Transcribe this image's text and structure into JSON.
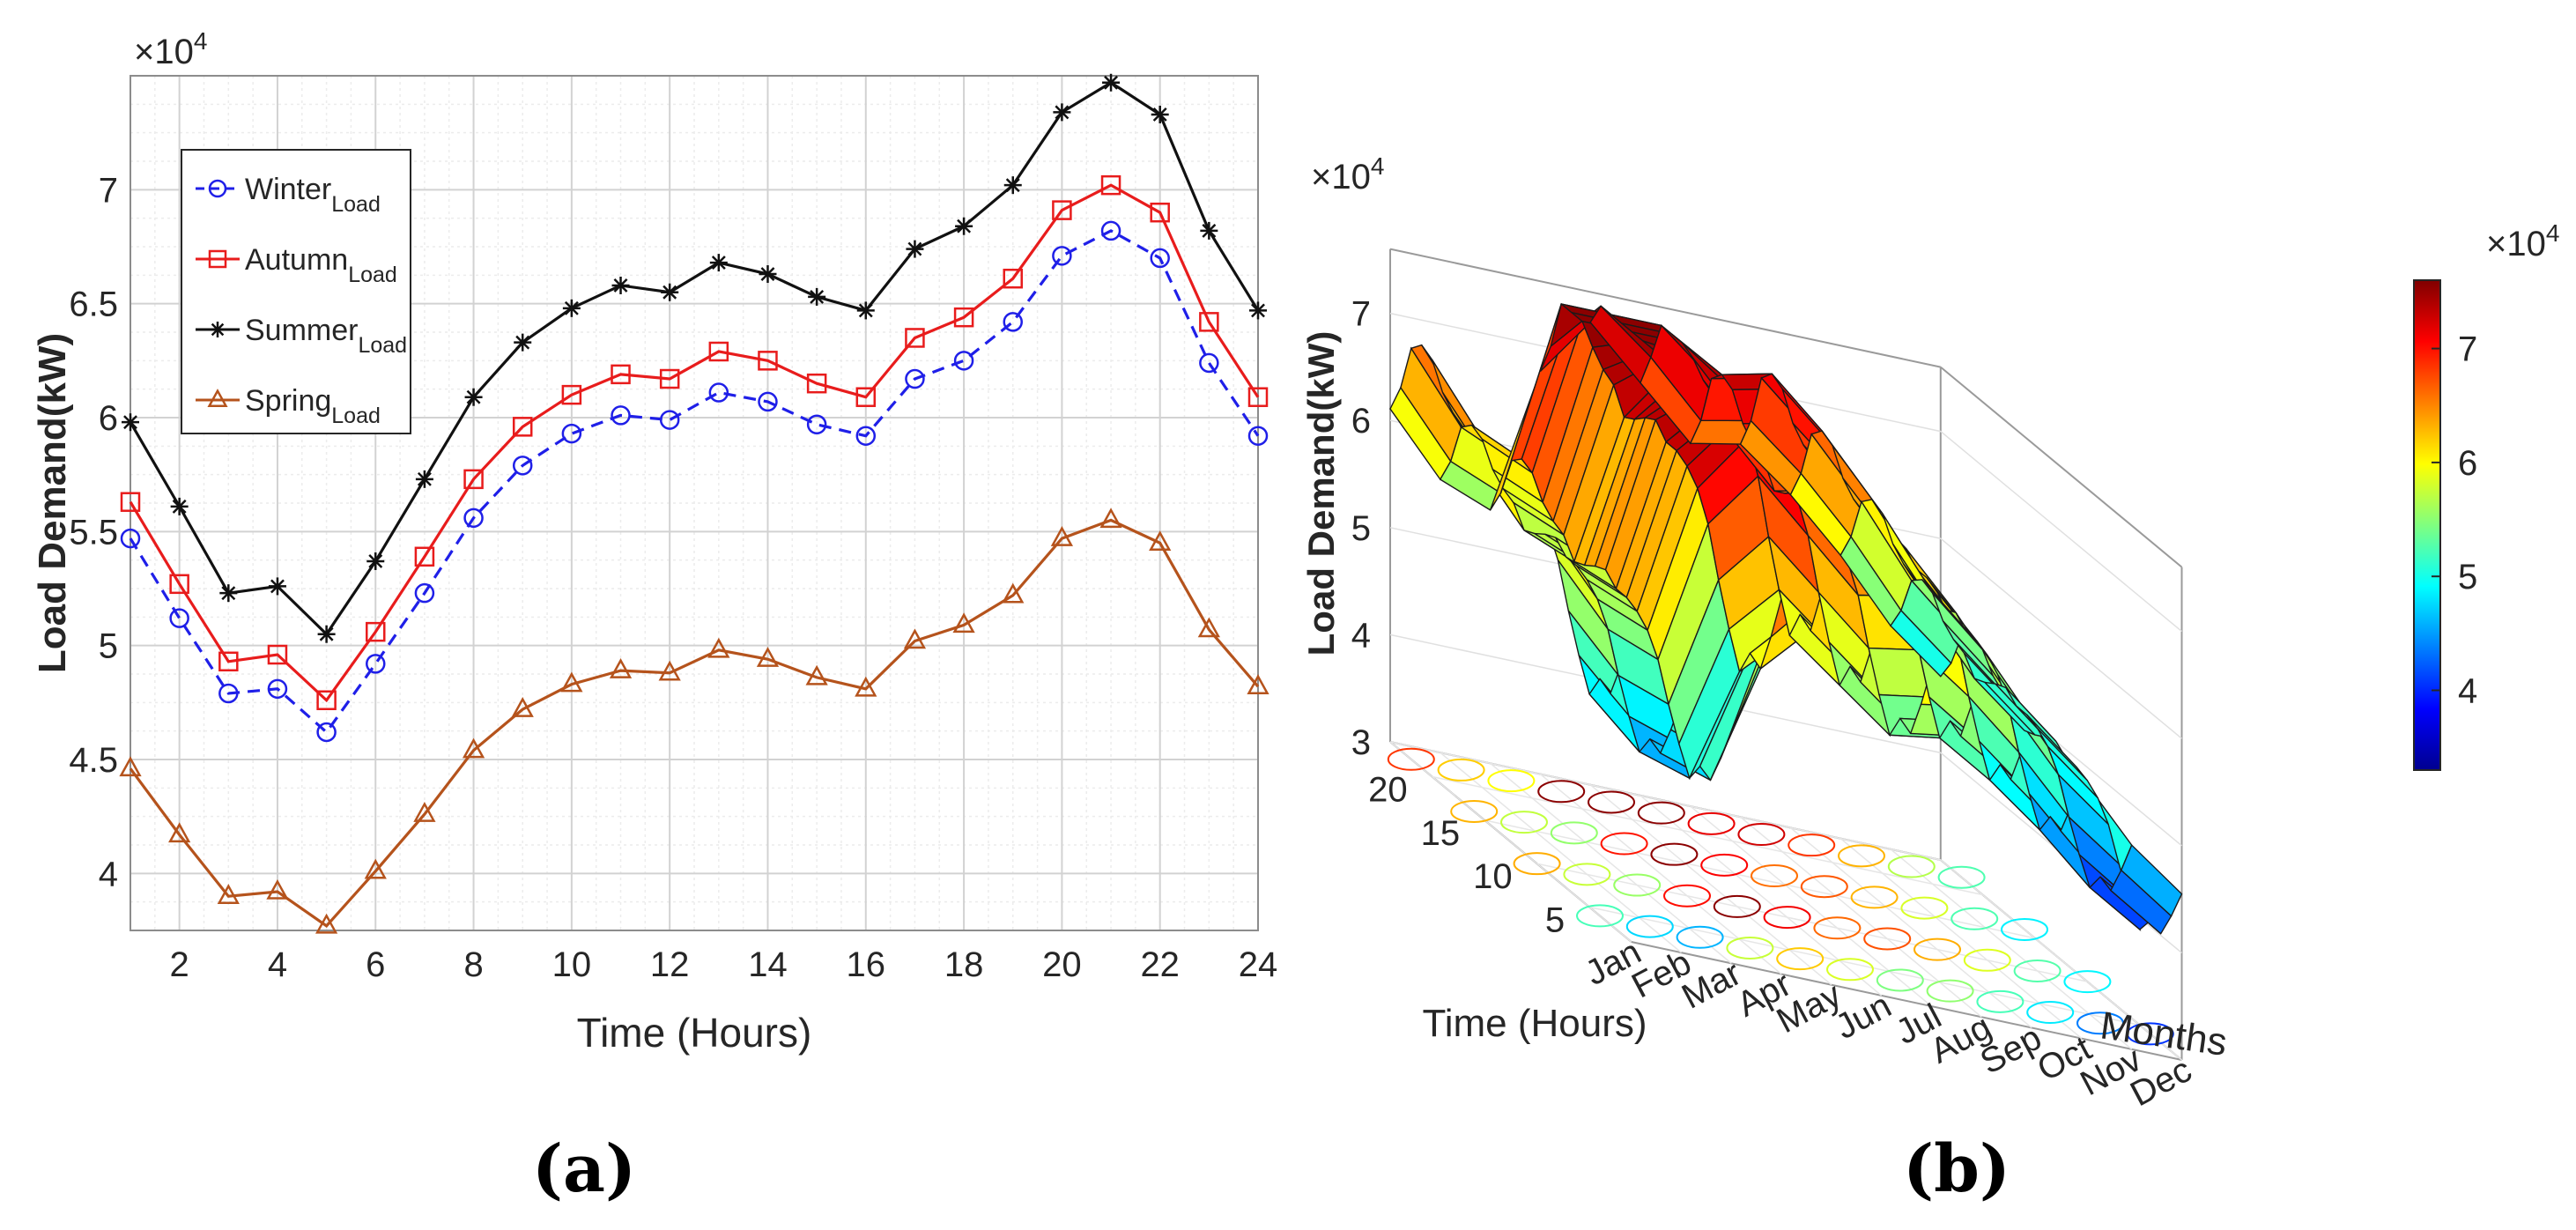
{
  "panel_labels": {
    "a": "(a)",
    "b": "(b)"
  },
  "chart_data": [
    {
      "type": "line",
      "panel": "(a)",
      "xlabel": "Time (Hours)",
      "ylabel": "Load Demand(kW)",
      "y_exponent": "×10",
      "y_exponent_power": "4",
      "xlim": [
        1,
        24
      ],
      "ylim": [
        3.75,
        7.5
      ],
      "xticks": [
        2,
        4,
        6,
        8,
        10,
        12,
        14,
        16,
        18,
        20,
        22,
        24
      ],
      "yticks": [
        4,
        4.5,
        5,
        5.5,
        6,
        6.5,
        7
      ],
      "ytick_labels": [
        "4",
        "4.5",
        "5",
        "5.5",
        "6",
        "6.5",
        "7"
      ],
      "grid": true,
      "legend_position": "top-left",
      "x": [
        1,
        2,
        3,
        4,
        5,
        6,
        7,
        8,
        9,
        10,
        11,
        12,
        13,
        14,
        15,
        16,
        17,
        18,
        19,
        20,
        21,
        22,
        23,
        24
      ],
      "series": [
        {
          "name": "Winter",
          "subscript": "Load",
          "color": "#1f1fe8",
          "marker": "circle",
          "dash": true,
          "values": [
            5.47,
            5.12,
            4.79,
            4.81,
            4.62,
            4.92,
            5.23,
            5.56,
            5.79,
            5.93,
            6.01,
            5.99,
            6.11,
            6.07,
            5.97,
            5.92,
            6.17,
            6.25,
            6.42,
            6.71,
            6.82,
            6.7,
            6.24,
            5.92
          ]
        },
        {
          "name": "Autumn",
          "subscript": "Load",
          "color": "#e81c1c",
          "marker": "square",
          "dash": false,
          "values": [
            5.63,
            5.27,
            4.93,
            4.96,
            4.76,
            5.06,
            5.39,
            5.73,
            5.96,
            6.1,
            6.19,
            6.17,
            6.29,
            6.25,
            6.15,
            6.09,
            6.35,
            6.44,
            6.61,
            6.91,
            7.02,
            6.9,
            6.42,
            6.09
          ]
        },
        {
          "name": "Summer",
          "subscript": "Load",
          "color": "#111111",
          "marker": "star",
          "dash": false,
          "values": [
            5.98,
            5.61,
            5.23,
            5.26,
            5.05,
            5.37,
            5.73,
            6.09,
            6.33,
            6.48,
            6.58,
            6.55,
            6.68,
            6.63,
            6.53,
            6.47,
            6.74,
            6.84,
            7.02,
            7.34,
            7.47,
            7.33,
            6.82,
            6.47
          ]
        },
        {
          "name": "Spring",
          "subscript": "Load",
          "color": "#b5531c",
          "marker": "triangle",
          "dash": false,
          "values": [
            4.46,
            4.17,
            3.9,
            3.92,
            3.77,
            4.01,
            4.26,
            4.54,
            4.72,
            4.83,
            4.89,
            4.88,
            4.98,
            4.94,
            4.86,
            4.81,
            5.02,
            5.09,
            5.22,
            5.47,
            5.55,
            5.45,
            5.07,
            4.82
          ]
        }
      ]
    },
    {
      "type": "surface",
      "panel": "(b)",
      "xlabel": "Months",
      "ylabel": "Time (Hours)",
      "zlabel": "Load Demand(kW)",
      "z_exponent": "×10",
      "z_exponent_power": "4",
      "months": [
        "Jan",
        "Feb",
        "Mar",
        "Apr",
        "May",
        "Jun",
        "Jul",
        "Aug",
        "Sep",
        "Oct",
        "Nov",
        "Dec"
      ],
      "hour_ticks": [
        5,
        10,
        15,
        20
      ],
      "zticks": [
        3,
        4,
        5,
        6,
        7
      ],
      "zlim": [
        3,
        7.6
      ],
      "colorbar": {
        "ticks": [
          4,
          5,
          6,
          7
        ],
        "range": [
          3.3,
          7.6
        ],
        "exponent": "×10",
        "exponent_power": "4"
      },
      "month_levels": [
        5.6,
        5.0,
        4.8,
        6.3,
        6.9,
        6.4,
        5.9,
        6.0,
        5.6,
        5.1,
        4.5,
        4.1
      ]
    }
  ]
}
